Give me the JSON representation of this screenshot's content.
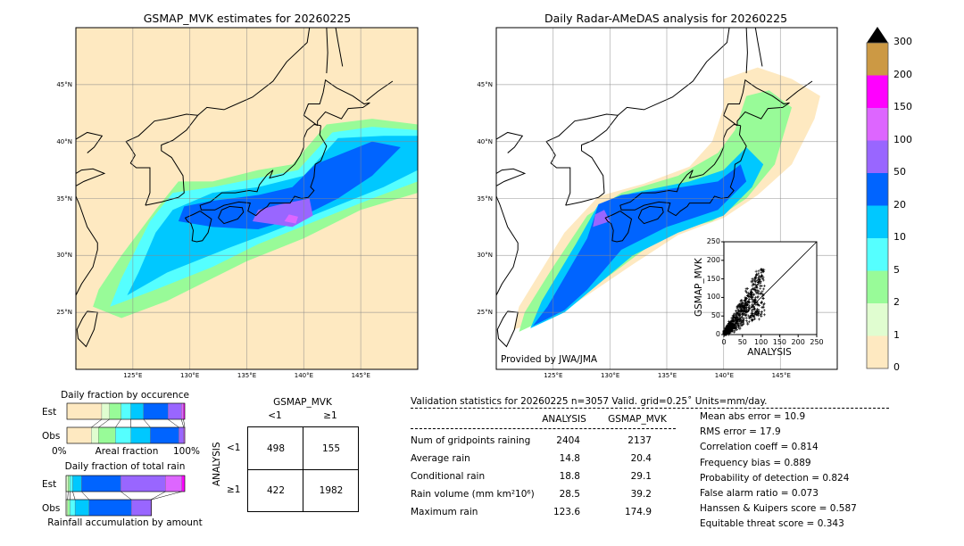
{
  "left_map": {
    "title": "GSMAP_MVK estimates for 20260225",
    "lon_ticks": [
      "125°E",
      "130°E",
      "135°E",
      "140°E",
      "145°E"
    ],
    "lat_ticks": [
      "45°N",
      "40°N",
      "35°N",
      "30°N",
      "25°N"
    ],
    "background_color": "#fee9c1"
  },
  "right_map": {
    "title": "Daily Radar-AMeDAS analysis for 20260225",
    "lon_ticks": [
      "125°E",
      "130°E",
      "135°E",
      "140°E",
      "145°E"
    ],
    "lat_ticks": [
      "45°N",
      "40°N",
      "35°N",
      "30°N",
      "25°N"
    ],
    "credit": "Provided by JWA/JMA"
  },
  "scatter_inset": {
    "xlabel": "ANALYSIS",
    "ylabel": "GSMAP_MVK",
    "ticks": [
      "0",
      "50",
      "100",
      "150",
      "200",
      "250"
    ],
    "range": [
      0,
      250
    ]
  },
  "colorbar": {
    "labels": [
      "0",
      "1",
      "2",
      "5",
      "10",
      "20",
      "50",
      "100",
      "150",
      "200",
      "300"
    ],
    "colors": [
      "#fee9c1",
      "#e0fdd0",
      "#98fb98",
      "#55ffff",
      "#00c8ff",
      "#0064ff",
      "#9966ff",
      "#dd66ff",
      "#ff00ff",
      "#cc9944"
    ],
    "extend_color": "#000000"
  },
  "fraction_occurrence": {
    "title": "Daily fraction by occurence",
    "rows": [
      {
        "label": "Est",
        "fractions": [
          29.5,
          6.6,
          9.8,
          8.3,
          10.8,
          20.7,
          11.4,
          1.8,
          1.1
        ]
      },
      {
        "label": "Obs",
        "fractions": [
          20.7,
          6.1,
          14.4,
          13.2,
          16.4,
          24.2,
          4.1,
          0.9
        ]
      }
    ],
    "axis_left": "0%",
    "axis_label": "Areal fraction",
    "axis_right": "100%"
  },
  "fraction_rain": {
    "title": "Daily fraction of total rain",
    "rows": [
      {
        "label": "Est",
        "fractions": [
          0.0,
          1.8,
          1.5,
          2.3,
          7.5,
          33.0,
          37.6,
          13.8,
          2.5
        ]
      },
      {
        "label": "Obs",
        "fractions": [
          0.0,
          1.3,
          2.0,
          4.3,
          11.8,
          35.6,
          16.5,
          0.5
        ]
      }
    ],
    "footer": "Rainfall accumulation by amount"
  },
  "contingency": {
    "col_title": "GSMAP_MVK",
    "row_title": "ANALYSIS",
    "col_labels": [
      "<1",
      "≥1"
    ],
    "row_labels": [
      "<1",
      "≥1"
    ],
    "cells": [
      [
        "498",
        "155"
      ],
      [
        "422",
        "1982"
      ]
    ]
  },
  "stats": {
    "header": "Validation statistics for 20260225  n=3057 Valid. grid=0.25˚ Units=mm/day.",
    "col_headers": [
      "ANALYSIS",
      "GSMAP_MVK"
    ],
    "rows": [
      {
        "label": "Num of gridpoints raining",
        "analysis": "2404",
        "gsmap": "2137"
      },
      {
        "label": "Average rain",
        "analysis": "14.8",
        "gsmap": "20.4"
      },
      {
        "label": "Conditional rain",
        "analysis": "18.8",
        "gsmap": "29.1"
      },
      {
        "label": "Rain volume (mm km²10⁶)",
        "analysis": "28.5",
        "gsmap": "39.2"
      },
      {
        "label": "Maximum rain",
        "analysis": "123.6",
        "gsmap": "174.9"
      }
    ],
    "scores": [
      "Mean abs error =   10.9",
      "RMS error =   17.9",
      "Correlation coeff =  0.814",
      "Frequency bias =  0.889",
      "Probability of detection =  0.824",
      "False alarm ratio =  0.073",
      "Hanssen & Kuipers score =  0.587",
      "Equitable threat score =  0.343"
    ]
  }
}
